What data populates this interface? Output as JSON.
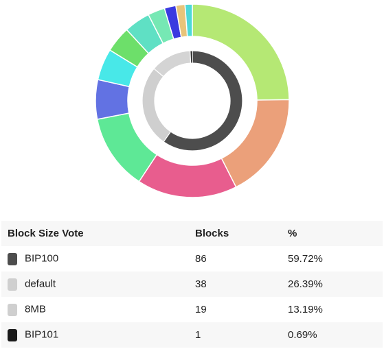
{
  "chart_data": [
    {
      "type": "pie",
      "ring": "outer",
      "values": [
        24.5,
        17.5,
        16.5,
        12.5,
        6.5,
        5.2,
        4.3,
        4.3,
        2.8,
        1.9,
        1.5,
        1.2
      ],
      "colors": [
        "#b5e874",
        "#eba07a",
        "#e85d8e",
        "#5ee896",
        "#6272e3",
        "#48e8e8",
        "#6ddf6a",
        "#5fe0c4",
        "#76e8b4",
        "#3a3ae0",
        "#e8c47a",
        "#4dd8d8"
      ]
    },
    {
      "type": "pie",
      "ring": "inner",
      "values": [
        86,
        38,
        19,
        1
      ],
      "colors": [
        "#4d4d4d",
        "#cfcfcf",
        "#d4d4d4",
        "#1a1a1a"
      ]
    }
  ],
  "table": {
    "headers": [
      "Block Size Vote",
      "Blocks",
      "%"
    ],
    "rows": [
      {
        "label": "BIP100",
        "blocks": "86",
        "percent": "59.72%",
        "color": "#4d4d4d"
      },
      {
        "label": "default",
        "blocks": "38",
        "percent": "26.39%",
        "color": "#cfcfcf"
      },
      {
        "label": "8MB",
        "blocks": "19",
        "percent": "13.19%",
        "color": "#cfcfcf"
      },
      {
        "label": "BIP101",
        "blocks": "1",
        "percent": "0.69%",
        "color": "#1a1a1a"
      }
    ]
  }
}
